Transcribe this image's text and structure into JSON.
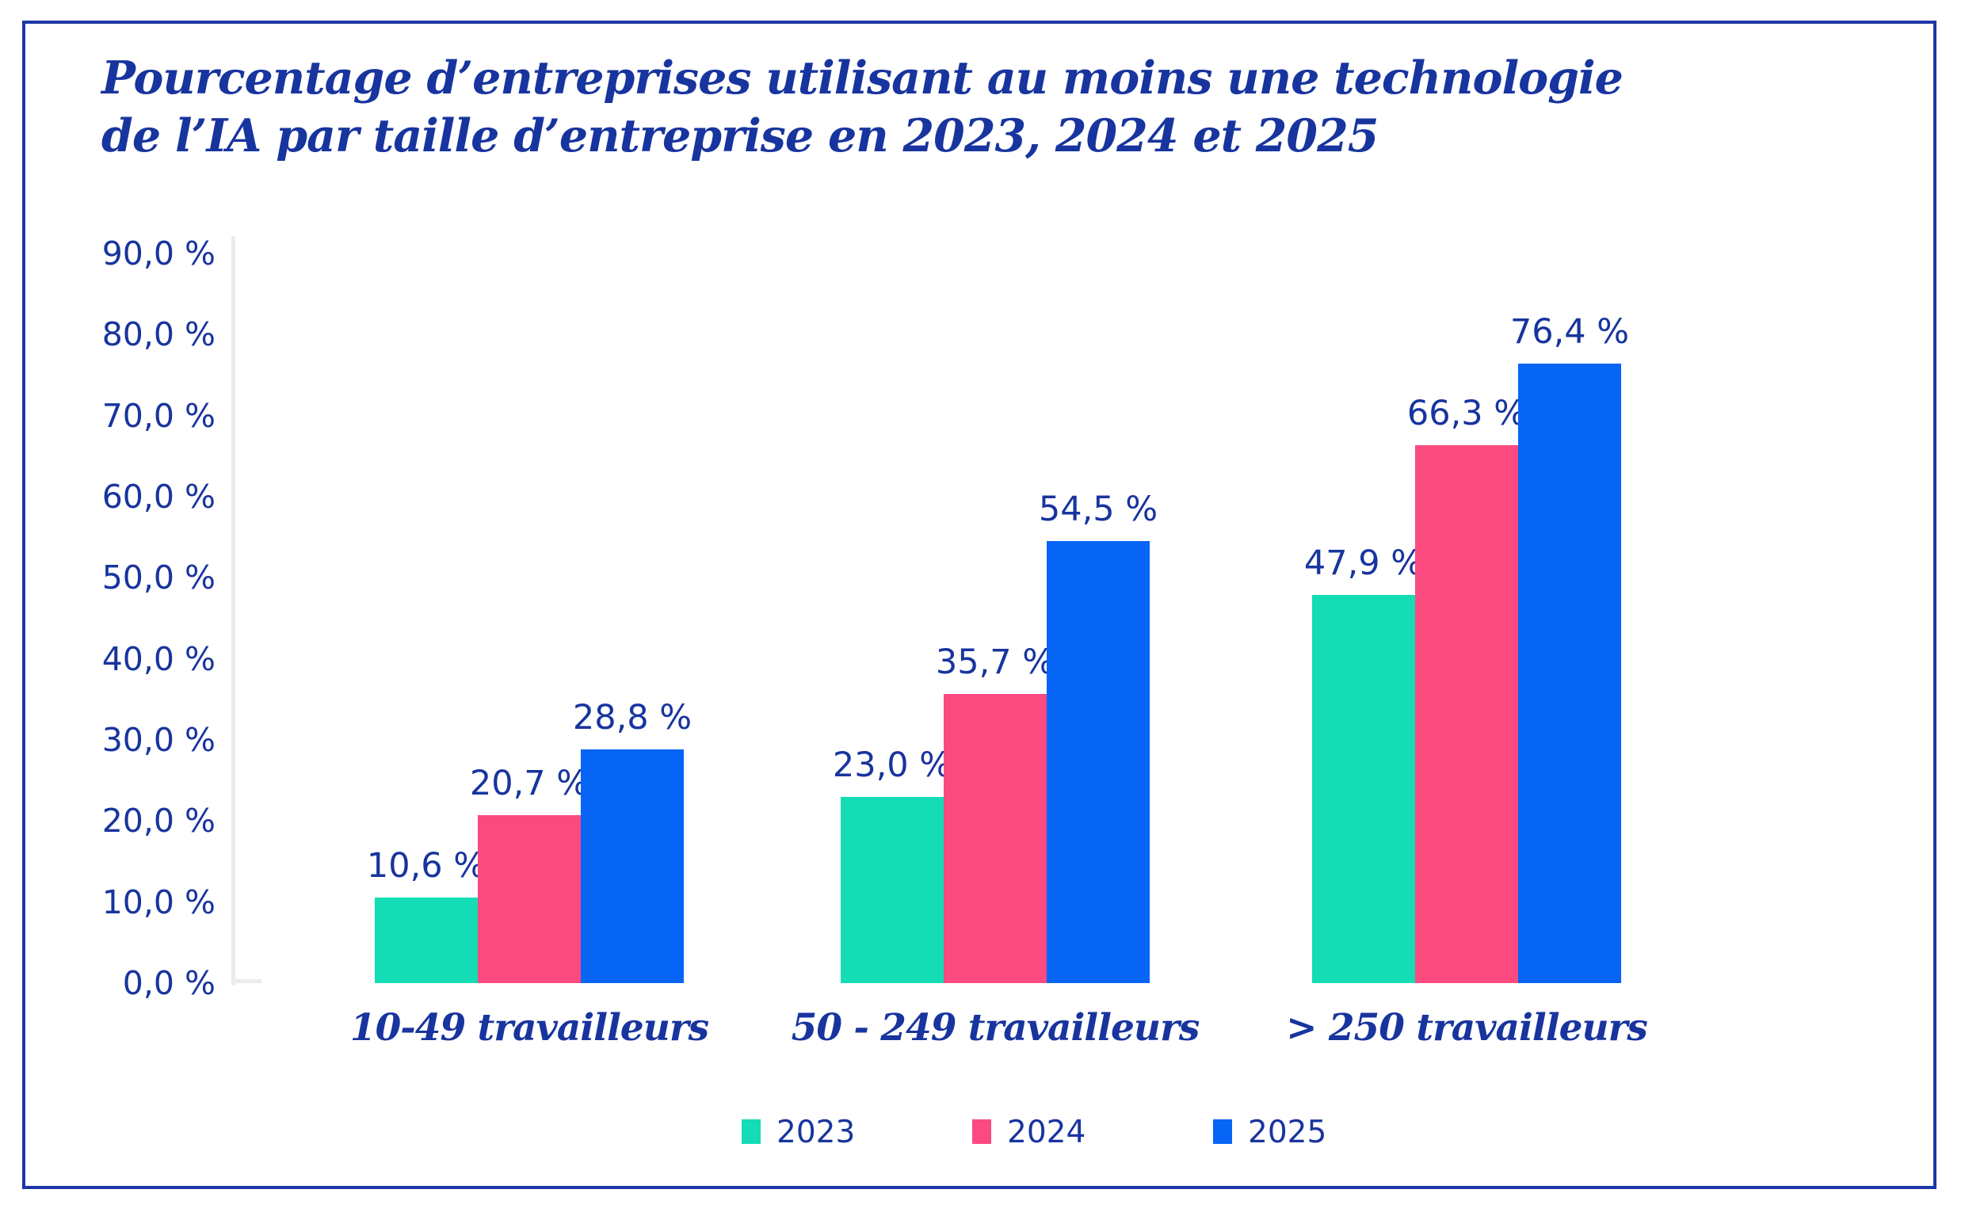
{
  "frame": {
    "border_color": "#1e36a6"
  },
  "chart_data": {
    "type": "bar",
    "title": "Pourcentage d’entreprises utilisant au moins une technologie de l’IA par taille d’entreprise en 2023, 2024 et 2025",
    "title_lines": [
      "Pourcentage d’entreprises utilisant au moins une technologie",
      "de l’IA par taille d’entreprise en 2023, 2024 et 2025"
    ],
    "categories": [
      "10-49 travailleurs",
      "50 - 249 travailleurs",
      "> 250 travailleurs"
    ],
    "series": [
      {
        "name": "2023",
        "color": "#14dcb4",
        "values": [
          10.6,
          23.0,
          47.9
        ],
        "labels": [
          "10,6 %",
          "23,0 %",
          "47,9 %"
        ]
      },
      {
        "name": "2024",
        "color": "#fb4a80",
        "values": [
          20.7,
          35.7,
          66.3
        ],
        "labels": [
          "20,7 %",
          "35,7 %",
          "66,3 %"
        ]
      },
      {
        "name": "2025",
        "color": "#0665f5",
        "values": [
          28.8,
          54.5,
          76.4
        ],
        "labels": [
          "28,8 %",
          "54,5 %",
          "76,4 %"
        ]
      }
    ],
    "y_axis": {
      "ticks": [
        "90,0 %",
        "80,0 %",
        "70,0 %",
        "60,0 %",
        "50,0 %",
        "40,0 %",
        "30,0 %",
        "20,0 %",
        "10,0 %",
        "0,0 %"
      ],
      "tick_values": [
        90,
        80,
        70,
        60,
        50,
        40,
        30,
        20,
        10,
        0
      ],
      "ylim": [
        0,
        90
      ],
      "grid": false
    },
    "legend": {
      "position": "bottom",
      "entries": [
        "2023",
        "2024",
        "2025"
      ]
    },
    "text_color": "#18349e",
    "axis_color": "#ececec"
  }
}
